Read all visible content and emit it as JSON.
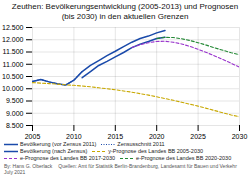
{
  "chart_data": {
    "type": "line",
    "title": "Zeuthen: Bevölkerungsentwicklung (2005-2013) und Prognosen\n(bis 2030) in den aktuellen Grenzen",
    "annotations": [
      "By: Hans G. Oberlack",
      "Quellen: Amt für Statistik Berlin-Brandenburg, Landesamt für Bauen und Verkehr",
      "July 2021"
    ],
    "x": [
      2005,
      2006,
      2007,
      2008,
      2009,
      2010,
      2011,
      2012,
      2013,
      2014,
      2015,
      2016,
      2017,
      2018,
      2019,
      2020,
      2021,
      2022,
      2023,
      2024,
      2025,
      2026,
      2027,
      2028,
      2029,
      2030
    ],
    "series": [
      {
        "name": "Bevölkerung (vor Zensus 2011)",
        "color": "#1a4aaa",
        "line_style": "solid",
        "values": [
          10300,
          10380,
          10280,
          10200,
          10150,
          10350,
          10700,
          10950,
          11150,
          11350,
          11530,
          11720,
          11900,
          12050,
          12150,
          12280,
          12380,
          null,
          null,
          null,
          null,
          null,
          null,
          null,
          null,
          null
        ]
      },
      {
        "name": "Zensusschnitt 2011",
        "color": "#1a4aaa",
        "line_style": "dotted",
        "values": [
          10300,
          10380,
          10280,
          10200,
          10150,
          10350,
          10700,
          null,
          null,
          null,
          null,
          null,
          null,
          null,
          null,
          null,
          null,
          null,
          null,
          null,
          null,
          null,
          null,
          null,
          null,
          null
        ]
      },
      {
        "name": "Bevölkerung (nach Zensus)",
        "color": "#1a4aaa",
        "line_style": "solid",
        "values": [
          null,
          null,
          null,
          null,
          null,
          null,
          10450,
          10700,
          10950,
          11120,
          11300,
          11480,
          11680,
          11820,
          11930,
          12050,
          12100,
          null,
          null,
          null,
          null,
          null,
          null,
          null,
          null,
          null
        ]
      },
      {
        "name": "y-Prognose des Landes BB 2005-2030",
        "color": "#c8a800",
        "line_style": "dashed",
        "values": [
          10250,
          10230,
          10210,
          10190,
          10160,
          10140,
          10110,
          10080,
          10040,
          10000,
          9960,
          9910,
          9860,
          9800,
          9740,
          9670,
          9600,
          9530,
          9450,
          9370,
          9290,
          9200,
          9110,
          9020,
          8930,
          8860
        ]
      },
      {
        "name": "e-Prognose des Landes BB 2017-2030",
        "color": "#9933cc",
        "line_style": "dashed",
        "values": [
          null,
          null,
          null,
          null,
          null,
          null,
          null,
          null,
          null,
          null,
          null,
          null,
          11680,
          11800,
          11880,
          11930,
          11940,
          11900,
          11830,
          11730,
          11610,
          11480,
          11340,
          11190,
          11040,
          10880
        ]
      },
      {
        "name": "e-Prognose des Landes BB 2020-2030",
        "color": "#228833",
        "line_style": "dashed",
        "values": [
          null,
          null,
          null,
          null,
          null,
          null,
          null,
          null,
          null,
          null,
          null,
          null,
          null,
          null,
          null,
          12050,
          12100,
          12090,
          12040,
          11970,
          11880,
          11780,
          11670,
          11570,
          11470,
          11390
        ]
      }
    ],
    "xlim": [
      2005,
      2030
    ],
    "xticks": [
      2005,
      2010,
      2015,
      2020,
      2025,
      2030
    ],
    "ylim": [
      8500,
      12500
    ],
    "yticks": [
      {
        "value": 8500,
        "label": "8.500"
      },
      {
        "value": 9000,
        "label": "9.000"
      },
      {
        "value": 9500,
        "label": "9.500"
      },
      {
        "value": 10000,
        "label": "10.000"
      },
      {
        "value": 10500,
        "label": "10.500"
      },
      {
        "value": 11000,
        "label": "11.000"
      },
      {
        "value": 11500,
        "label": "11.500"
      },
      {
        "value": 12000,
        "label": "12.000"
      },
      {
        "value": 12500,
        "label": "12.500"
      }
    ],
    "grid": true,
    "legend": "bottom"
  }
}
